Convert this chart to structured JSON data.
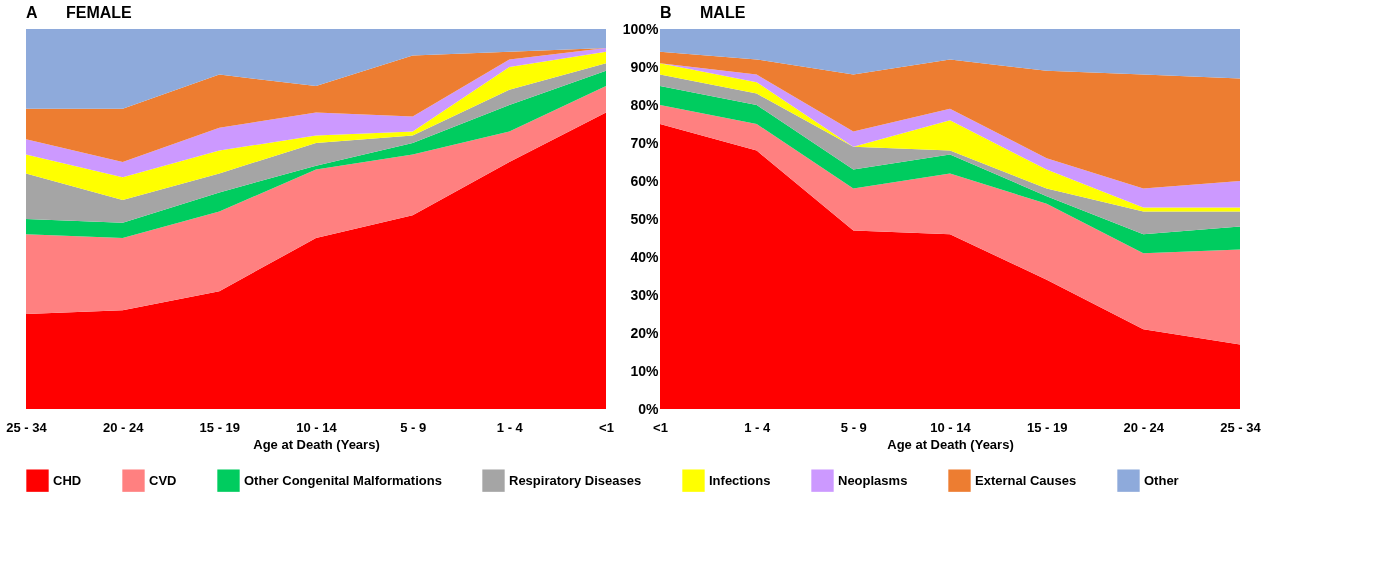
{
  "chart_data": [
    {
      "type": "area",
      "stacked": true,
      "title": "FEMALE",
      "annotations": [
        "A"
      ],
      "xlabel": "Age at Death (Years)",
      "categories": [
        "25 - 34",
        "20 - 24",
        "15 - 19",
        "10 - 14",
        "5 - 9",
        "1 - 4",
        "<1"
      ],
      "ylim": [
        0,
        100
      ],
      "tick_labels": "x",
      "grid": false,
      "legend": "bottom",
      "series": [
        {
          "name": "CHD",
          "color": "#ff0000",
          "values": [
            25,
            26,
            31,
            45,
            51,
            65,
            78
          ]
        },
        {
          "name": "CVD",
          "color": "#ff8080",
          "values": [
            21,
            19,
            21,
            18,
            16,
            8,
            7
          ]
        },
        {
          "name": "Other Congenital Malformations",
          "color": "#00cc5f",
          "values": [
            4,
            4,
            5,
            1,
            3,
            7,
            4
          ]
        },
        {
          "name": "Respiratory Diseases",
          "color": "#a5a5a5",
          "values": [
            12,
            6,
            5,
            6,
            2,
            4,
            2
          ]
        },
        {
          "name": "Infections",
          "color": "#ffff00",
          "values": [
            5,
            6,
            6,
            2,
            1,
            6,
            3
          ]
        },
        {
          "name": "Neoplasms",
          "color": "#cc99ff",
          "values": [
            4,
            4,
            6,
            6,
            4,
            2,
            1
          ]
        },
        {
          "name": "External Causes",
          "color": "#ed7d31",
          "values": [
            8,
            14,
            14,
            7,
            16,
            2,
            0
          ]
        },
        {
          "name": "Other",
          "color": "#8eaadb",
          "values": [
            21,
            21,
            12,
            15,
            7,
            6,
            5
          ]
        }
      ]
    },
    {
      "type": "area",
      "stacked": true,
      "title": "MALE",
      "annotations": [
        "B"
      ],
      "xlabel": "Age at Death (Years)",
      "categories": [
        "<1",
        "1 - 4",
        "5 - 9",
        "10 - 14",
        "15 - 19",
        "20 - 24",
        "25 - 34"
      ],
      "ylim": [
        0,
        100
      ],
      "yticks": [
        {
          "value": 0,
          "label": "0%"
        },
        {
          "value": 10,
          "label": "10%"
        },
        {
          "value": 20,
          "label": "20%"
        },
        {
          "value": 30,
          "label": "30%"
        },
        {
          "value": 40,
          "label": "40%"
        },
        {
          "value": 50,
          "label": "50%"
        },
        {
          "value": 60,
          "label": "60%"
        },
        {
          "value": 70,
          "label": "70%"
        },
        {
          "value": 80,
          "label": "80%"
        },
        {
          "value": 90,
          "label": "90%"
        },
        {
          "value": 100,
          "label": "100%"
        }
      ],
      "grid": false,
      "legend": "bottom",
      "series": [
        {
          "name": "CHD",
          "color": "#ff0000",
          "values": [
            75,
            68,
            47,
            46,
            34,
            21,
            17
          ]
        },
        {
          "name": "CVD",
          "color": "#ff8080",
          "values": [
            5,
            7,
            11,
            16,
            20,
            20,
            25
          ]
        },
        {
          "name": "Other Congenital Malformations",
          "color": "#00cc5f",
          "values": [
            5,
            5,
            5,
            5,
            2,
            5,
            6
          ]
        },
        {
          "name": "Respiratory Diseases",
          "color": "#a5a5a5",
          "values": [
            3,
            3,
            6,
            1,
            2,
            6,
            4
          ]
        },
        {
          "name": "Infections",
          "color": "#ffff00",
          "values": [
            3,
            3,
            0,
            8,
            5,
            1,
            1
          ]
        },
        {
          "name": "Neoplasms",
          "color": "#cc99ff",
          "values": [
            0,
            2,
            4,
            3,
            3,
            5,
            7
          ]
        },
        {
          "name": "External Causes",
          "color": "#ed7d31",
          "values": [
            3,
            4,
            15,
            13,
            23,
            30,
            27
          ]
        },
        {
          "name": "Other",
          "color": "#8eaadb",
          "values": [
            6,
            8,
            12,
            8,
            11,
            12,
            13
          ]
        }
      ]
    }
  ]
}
